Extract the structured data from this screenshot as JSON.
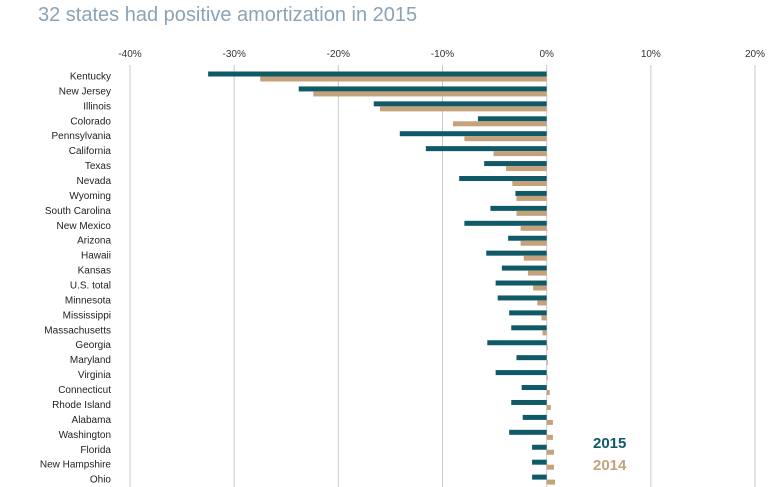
{
  "title": "32 states had positive amortization in 2015",
  "colors": {
    "series_2015": "#0f5a66",
    "series_2014": "#c4a27c",
    "grid": "#c8c8c8"
  },
  "chart_data": {
    "type": "bar",
    "orientation": "horizontal",
    "title": "32 states had positive amortization in 2015",
    "xlim": [
      -40,
      20
    ],
    "xticks": [
      -40,
      -30,
      -20,
      -10,
      0,
      10,
      20
    ],
    "xtick_labels": [
      "-40%",
      "-30%",
      "-20%",
      "-10%",
      "0%",
      "10%",
      "20%"
    ],
    "grid": "vertical",
    "legend": {
      "placement": "bottom-right"
    },
    "categories": [
      "Kentucky",
      "New Jersey",
      "Illinois",
      "Colorado",
      "Pennsylvania",
      "California",
      "Texas",
      "Nevada",
      "Wyoming",
      "South Carolina",
      "New Mexico",
      "Arizona",
      "Hawaii",
      "Kansas",
      "U.S. total",
      "Minnesota",
      "Mississippi",
      "Massachusetts",
      "Georgia",
      "Maryland",
      "Virginia",
      "Connecticut",
      "Rhode Island",
      "Alabama",
      "Washington",
      "Florida",
      "New Hampshire",
      "Ohio"
    ],
    "series": [
      {
        "name": "2015",
        "values": [
          -32.5,
          -23.8,
          -16.6,
          -6.6,
          -14.1,
          -11.6,
          -6.0,
          -8.4,
          -3.0,
          -5.4,
          -7.9,
          -3.7,
          -5.8,
          -4.3,
          -4.9,
          -4.7,
          -3.6,
          -3.4,
          -5.7,
          -2.9,
          -4.9,
          -2.4,
          -3.4,
          -2.3,
          -3.6,
          -1.4,
          -1.4,
          -1.4
        ]
      },
      {
        "name": "2014",
        "values": [
          -27.5,
          -22.4,
          -16.0,
          -9.0,
          -7.9,
          -5.1,
          -3.9,
          -3.3,
          -2.9,
          -2.9,
          -2.5,
          -2.5,
          -2.2,
          -1.8,
          -1.3,
          -0.9,
          -0.5,
          -0.4,
          0.1,
          0.1,
          0.1,
          0.3,
          0.4,
          0.6,
          0.6,
          0.7,
          0.7,
          0.8
        ]
      }
    ]
  }
}
